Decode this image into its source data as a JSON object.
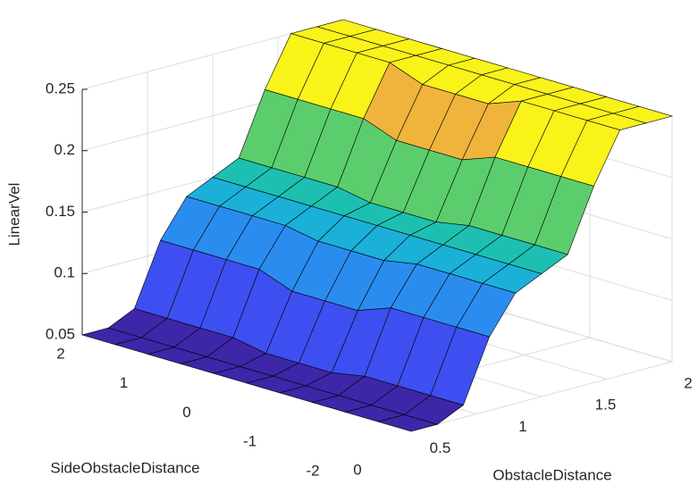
{
  "chart_data": {
    "type": "surface",
    "x_label": "ObstacleDistance",
    "y_label": "SideObstacleDistance",
    "z_label": "LinearVel",
    "x": [
      0,
      0.2,
      0.4,
      0.6,
      0.8,
      1,
      1.2,
      1.4,
      1.6,
      1.8,
      2
    ],
    "y": [
      -2,
      -1.6,
      -1.2,
      -0.8,
      -0.4,
      0,
      0.4,
      0.8,
      1.2,
      1.6,
      2
    ],
    "z": [
      [
        0.05,
        0.05,
        0.06,
        0.11,
        0.14,
        0.15,
        0.16,
        0.21,
        0.25,
        0.25,
        0.25
      ],
      [
        0.05,
        0.05,
        0.06,
        0.11,
        0.14,
        0.15,
        0.16,
        0.21,
        0.25,
        0.25,
        0.25
      ],
      [
        0.05,
        0.05,
        0.06,
        0.11,
        0.14,
        0.15,
        0.16,
        0.21,
        0.25,
        0.25,
        0.25
      ],
      [
        0.05,
        0.05,
        0.06,
        0.11,
        0.14,
        0.15,
        0.16,
        0.21,
        0.25,
        0.25,
        0.25
      ],
      [
        0.05,
        0.05,
        0.055,
        0.1,
        0.135,
        0.15,
        0.155,
        0.2,
        0.24,
        0.25,
        0.25
      ],
      [
        0.05,
        0.05,
        0.055,
        0.1,
        0.135,
        0.15,
        0.155,
        0.2,
        0.24,
        0.25,
        0.25
      ],
      [
        0.05,
        0.05,
        0.055,
        0.1,
        0.135,
        0.15,
        0.155,
        0.2,
        0.24,
        0.25,
        0.25
      ],
      [
        0.05,
        0.05,
        0.06,
        0.11,
        0.14,
        0.15,
        0.16,
        0.21,
        0.25,
        0.25,
        0.25
      ],
      [
        0.05,
        0.05,
        0.06,
        0.11,
        0.14,
        0.15,
        0.16,
        0.21,
        0.25,
        0.25,
        0.25
      ],
      [
        0.05,
        0.05,
        0.06,
        0.11,
        0.14,
        0.15,
        0.16,
        0.21,
        0.25,
        0.25,
        0.25
      ],
      [
        0.05,
        0.05,
        0.06,
        0.11,
        0.14,
        0.15,
        0.16,
        0.21,
        0.25,
        0.25,
        0.25
      ]
    ],
    "xlim": [
      0,
      2
    ],
    "ylim": [
      -2,
      2
    ],
    "zlim": [
      0.05,
      0.25
    ],
    "xticks": [
      0,
      0.5,
      1,
      1.5,
      2
    ],
    "yticks": [
      -2,
      -1,
      0,
      1,
      2
    ],
    "zticks": [
      0.05,
      0.1,
      0.15,
      0.2,
      0.25
    ],
    "grid": true,
    "colormap": [
      "#3e26a8",
      "#3d4ff0",
      "#2b8cf0",
      "#1bb0d8",
      "#1dc0b0",
      "#5ccd6c",
      "#f0b43c",
      "#f9f31a"
    ]
  }
}
